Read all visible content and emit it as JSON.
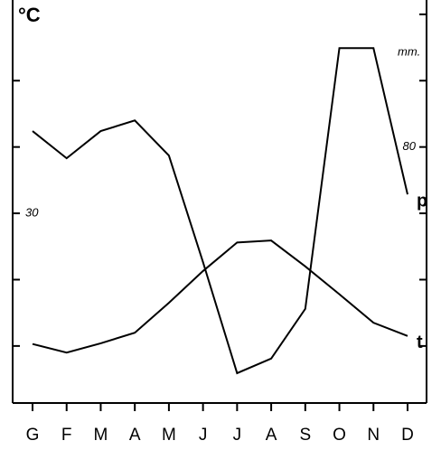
{
  "chart_data": {
    "type": "line",
    "y_unit": "°C",
    "y2_unit": "mm.",
    "categories": [
      "G",
      "F",
      "M",
      "A",
      "M",
      "J",
      "J",
      "A",
      "S",
      "O",
      "N",
      "D"
    ],
    "series": [
      {
        "name": "t",
        "color": "#000000",
        "values": [
          10.3,
          9.0,
          10.4,
          12.0,
          16.5,
          21.3,
          25.6,
          25.9,
          22.0,
          17.8,
          13.5,
          11.5
        ]
      },
      {
        "name": "p",
        "color": "#000000",
        "axis": "y2",
        "values": [
          84.8,
          76.6,
          84.8,
          88.0,
          77.4,
          45.3,
          11.8,
          16.2,
          31.2,
          109.8,
          109.8,
          65.7
        ]
      }
    ],
    "ylim": [
      1.4,
      60.8
    ],
    "yticks": [
      30
    ],
    "ytick_marks": [
      10,
      20,
      30,
      40,
      50
    ],
    "y2lim": [
      2.8,
      121.6
    ],
    "y2ticks": [
      80
    ],
    "y2tick_marks": [
      20,
      40,
      60,
      80,
      100,
      120
    ],
    "grid": false
  }
}
